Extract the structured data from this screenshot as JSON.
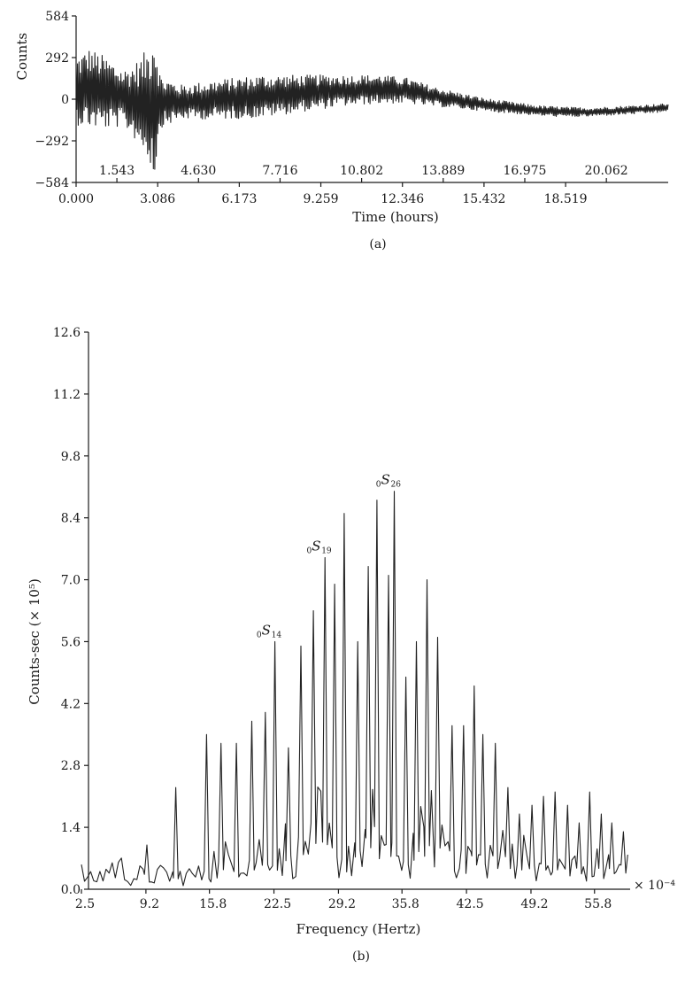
{
  "chart_data": [
    {
      "id": "a",
      "type": "line",
      "caption": "(a)",
      "xlabel": "Time (hours)",
      "ylabel": "Counts",
      "xlim": [
        0.0,
        22.4
      ],
      "ylim": [
        -584,
        584
      ],
      "y_ticks": [
        584,
        292,
        0,
        -292,
        -584
      ],
      "y_tick_labels": [
        "584",
        "292",
        "0",
        "−292",
        "−584"
      ],
      "x_ticks_lower": [
        0.0,
        3.086,
        6.173,
        9.259,
        12.346,
        15.432,
        18.519
      ],
      "x_tick_labels_lower": [
        "0.000",
        "3.086",
        "6.173",
        "9.259",
        "12.346",
        "15.432",
        "18.519"
      ],
      "x_ticks_upper": [
        1.543,
        4.63,
        7.716,
        10.802,
        13.889,
        16.975,
        20.062
      ],
      "x_tick_labels_upper": [
        "1.543",
        "4.630",
        "7.716",
        "10.802",
        "13.889",
        "16.975",
        "20.062"
      ],
      "series_description": "seismogram trace: oscillation about a slowly varying baseline",
      "envelope": {
        "x": [
          0,
          0.5,
          1.2,
          1.8,
          2.4,
          2.8,
          2.95,
          3.2,
          4.0,
          5.5,
          7.0,
          8.5,
          10.0,
          11.5,
          12.5,
          13.5,
          14.5,
          15.5,
          16.5,
          17.5,
          18.5,
          19.5,
          20.5,
          21.5,
          22.4
        ],
        "baseline": [
          60,
          80,
          40,
          10,
          -20,
          -30,
          -20,
          -20,
          -20,
          0,
          20,
          40,
          60,
          70,
          60,
          20,
          -10,
          -40,
          -60,
          -80,
          -90,
          -90,
          -80,
          -70,
          -60
        ],
        "amplitude": [
          240,
          280,
          250,
          200,
          300,
          420,
          560,
          180,
          120,
          140,
          150,
          130,
          110,
          100,
          90,
          70,
          55,
          45,
          40,
          35,
          35,
          30,
          30,
          30,
          30
        ]
      }
    },
    {
      "id": "b",
      "type": "line",
      "caption": "(b)",
      "xlabel": "Frequency (Hertz)",
      "ylabel": "Counts-sec (× 10⁵)",
      "x_multiplier": "× 10⁻⁴",
      "xlim": [
        2.5,
        59.5
      ],
      "ylim": [
        0.0,
        12.6
      ],
      "x_ticks": [
        2.5,
        9.2,
        15.8,
        22.5,
        29.2,
        35.8,
        42.5,
        49.2,
        55.8
      ],
      "x_tick_labels": [
        "2.5",
        "9.2",
        "15.8",
        "22.5",
        "29.2",
        "35.8",
        "42.5",
        "49.2",
        "55.8"
      ],
      "y_ticks": [
        0.0,
        1.4,
        2.8,
        4.2,
        5.6,
        7.0,
        8.4,
        9.8,
        11.2,
        12.6
      ],
      "y_tick_labels": [
        "0.0",
        "1.4",
        "2.8",
        "4.2",
        "5.6",
        "7.0",
        "8.4",
        "9.8",
        "11.2",
        "12.6"
      ],
      "peaks": [
        {
          "x": 9.3,
          "y": 1.0
        },
        {
          "x": 12.3,
          "y": 2.3
        },
        {
          "x": 15.5,
          "y": 3.5
        },
        {
          "x": 17.0,
          "y": 3.3
        },
        {
          "x": 18.6,
          "y": 3.3
        },
        {
          "x": 20.2,
          "y": 3.8
        },
        {
          "x": 21.6,
          "y": 4.0
        },
        {
          "x": 22.6,
          "y": 5.6
        },
        {
          "x": 24.0,
          "y": 3.2
        },
        {
          "x": 25.3,
          "y": 5.5
        },
        {
          "x": 26.6,
          "y": 6.3
        },
        {
          "x": 27.8,
          "y": 7.5
        },
        {
          "x": 28.8,
          "y": 6.9
        },
        {
          "x": 29.8,
          "y": 8.5
        },
        {
          "x": 31.2,
          "y": 5.6
        },
        {
          "x": 32.3,
          "y": 7.3
        },
        {
          "x": 33.2,
          "y": 8.8
        },
        {
          "x": 34.4,
          "y": 7.1
        },
        {
          "x": 35.0,
          "y": 9.0
        },
        {
          "x": 36.2,
          "y": 4.8
        },
        {
          "x": 37.3,
          "y": 5.6
        },
        {
          "x": 38.4,
          "y": 7.0
        },
        {
          "x": 39.5,
          "y": 5.7
        },
        {
          "x": 41.0,
          "y": 3.7
        },
        {
          "x": 42.2,
          "y": 3.7
        },
        {
          "x": 43.3,
          "y": 4.6
        },
        {
          "x": 44.2,
          "y": 3.5
        },
        {
          "x": 45.5,
          "y": 3.3
        },
        {
          "x": 46.8,
          "y": 2.3
        },
        {
          "x": 48.0,
          "y": 1.7
        },
        {
          "x": 49.3,
          "y": 1.9
        },
        {
          "x": 50.5,
          "y": 2.1
        },
        {
          "x": 51.7,
          "y": 2.2
        },
        {
          "x": 53.0,
          "y": 1.9
        },
        {
          "x": 54.2,
          "y": 1.5
        },
        {
          "x": 55.3,
          "y": 2.2
        },
        {
          "x": 56.5,
          "y": 1.7
        },
        {
          "x": 57.6,
          "y": 1.5
        },
        {
          "x": 58.8,
          "y": 1.3
        }
      ],
      "annotations": [
        {
          "sub_left": "0",
          "main": "S",
          "sub_right": "14",
          "x": 22.6,
          "y": 5.6
        },
        {
          "sub_left": "0",
          "main": "S",
          "sub_right": "19",
          "x": 27.8,
          "y": 7.5
        },
        {
          "sub_left": "0",
          "main": "S",
          "sub_right": "26",
          "x": 35.0,
          "y": 9.0
        }
      ]
    }
  ]
}
